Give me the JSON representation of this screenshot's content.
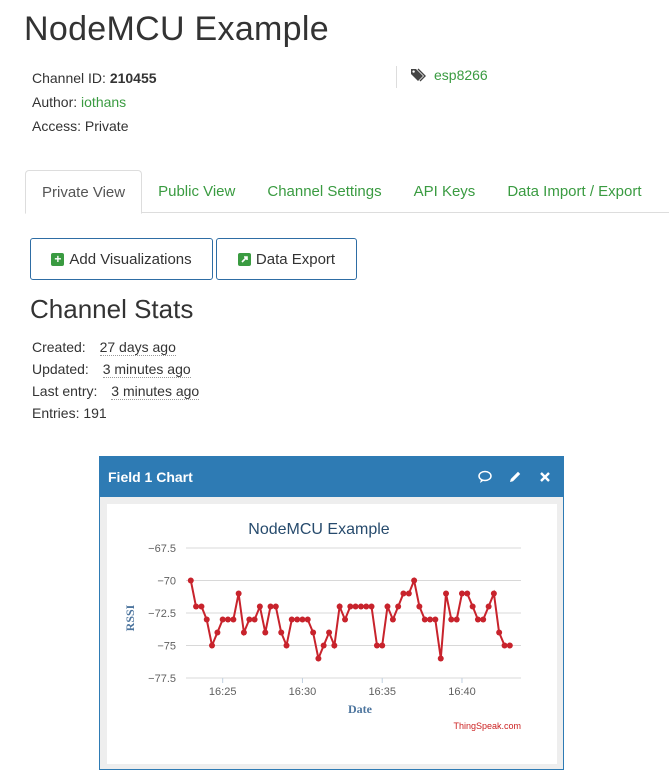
{
  "channel": {
    "title": "NodeMCU Example",
    "id_label": "Channel ID:",
    "id_value": "210455",
    "author_label": "Author:",
    "author_value": "iothans",
    "access_label": "Access:",
    "access_value": "Private",
    "tag": "esp8266"
  },
  "tabs": [
    {
      "label": "Private View",
      "active": true
    },
    {
      "label": "Public View"
    },
    {
      "label": "Channel Settings"
    },
    {
      "label": "API Keys"
    },
    {
      "label": "Data Import / Export"
    }
  ],
  "buttons": {
    "add_visualizations": "Add Visualizations",
    "data_export": "Data Export"
  },
  "stats": {
    "title": "Channel Stats",
    "created_label": "Created:",
    "created_value": "27 days ago",
    "updated_label": "Updated:",
    "updated_value": "3 minutes ago",
    "last_entry_label": "Last entry:",
    "last_entry_value": "3 minutes ago",
    "entries_label": "Entries:",
    "entries_value": "191"
  },
  "widget": {
    "title": "Field 1 Chart",
    "icons": [
      "comment-icon",
      "pencil-icon",
      "close-icon"
    ]
  },
  "colors": {
    "accent_blue": "#2e7bb4",
    "link_green": "#3a9b41",
    "series_red": "#c8232c"
  },
  "chart_data": {
    "type": "line",
    "title": "NodeMCU Example",
    "xlabel": "Date",
    "ylabel": "RSSI",
    "credit": "ThingSpeak.com",
    "x_ticks": [
      "16:25",
      "16:30",
      "16:35",
      "16:40"
    ],
    "x_tick_minutes": [
      25,
      30,
      35,
      40
    ],
    "x_range_minutes": [
      22.7,
      43.7
    ],
    "y_ticks": [
      -67.5,
      -70,
      -72.5,
      -75,
      -77.5
    ],
    "ylim": [
      -77.5,
      -67.5
    ],
    "grid": true,
    "legend": "none",
    "series": [
      {
        "x_minutes": [
          23.0,
          23.33,
          23.67,
          24.0,
          24.33,
          24.67,
          25.0,
          25.33,
          25.67,
          26.0,
          26.33,
          26.67,
          27.0,
          27.33,
          27.67,
          28.0,
          28.33,
          28.67,
          29.0,
          29.33,
          29.67,
          30.0,
          30.33,
          30.67,
          31.0,
          31.33,
          31.67,
          32.0,
          32.33,
          32.67,
          33.0,
          33.33,
          33.67,
          34.0,
          34.33,
          34.67,
          35.0,
          35.33,
          35.67,
          36.0,
          36.33,
          36.67,
          37.0,
          37.33,
          37.67,
          38.0,
          38.33,
          38.67,
          39.0,
          39.33,
          39.67,
          40.0,
          40.33,
          40.67,
          41.0,
          41.33,
          41.67,
          42.0,
          42.33,
          42.67,
          43.0
        ],
        "values": [
          -70,
          -72,
          -72,
          -73,
          -75,
          -74,
          -73,
          -73,
          -73,
          -71,
          -74,
          -73,
          -73,
          -72,
          -74,
          -72,
          -72,
          -74,
          -75,
          -73,
          -73,
          -73,
          -73,
          -74,
          -76,
          -75,
          -74,
          -75,
          -72,
          -73,
          -72,
          -72,
          -72,
          -72,
          -72,
          -75,
          -75,
          -72,
          -73,
          -72,
          -71,
          -71,
          -70,
          -72,
          -73,
          -73,
          -73,
          -76,
          -71,
          -73,
          -73,
          -71,
          -71,
          -72,
          -73,
          -73,
          -72,
          -71,
          -74,
          -75,
          -75
        ]
      }
    ]
  }
}
